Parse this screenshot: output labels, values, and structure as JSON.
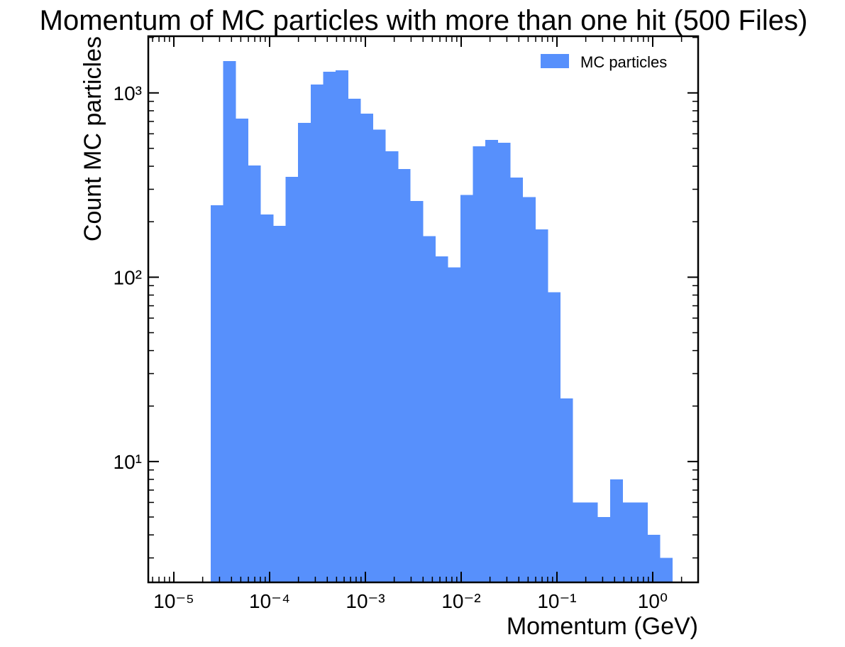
{
  "chart_data": {
    "type": "histogram",
    "title": "Momentum of MC particles with more than one hit (500 Files)",
    "xlabel": "Momentum (GeV)",
    "ylabel": "Count MC particles",
    "xscale": "log",
    "yscale": "log",
    "bins": [
      2.43e-05,
      3.27e-05,
      4.42e-05,
      5.97e-05,
      8.06e-05,
      0.0001089,
      0.000147,
      0.000198,
      0.000268,
      0.000361,
      0.000488,
      0.000659,
      0.000889,
      0.0012,
      0.00162,
      0.00219,
      0.00295,
      0.00399,
      0.00538,
      0.00727,
      0.00982,
      0.01324,
      0.01787,
      0.02415,
      0.0326,
      0.044,
      0.0594,
      0.0802,
      0.1082,
      0.1462,
      0.1972,
      0.2661,
      0.3597,
      0.4853,
      0.6546,
      0.885,
      1.194,
      1.61
    ],
    "series": [
      {
        "name": "MC particles",
        "color": "#5790fc",
        "values": [
          246,
          1490,
          726,
          404,
          219,
          190,
          351,
          689,
          1112,
          1305,
          1328,
          931,
          773,
          631,
          483,
          387,
          259,
          167,
          130,
          113,
          279,
          514,
          557,
          537,
          348,
          272,
          182,
          83,
          22,
          6,
          6,
          5,
          8,
          6,
          6,
          4,
          3
        ]
      }
    ],
    "xlim": [
      5.41e-06,
      2.98
    ],
    "ylim": [
      2.21,
      2030
    ],
    "xticks": [
      {
        "value": 1e-05,
        "label": "10⁻⁵"
      },
      {
        "value": 0.0001,
        "label": "10⁻⁴"
      },
      {
        "value": 0.001,
        "label": "10⁻³"
      },
      {
        "value": 0.01,
        "label": "10⁻²"
      },
      {
        "value": 0.1,
        "label": "10⁻¹"
      },
      {
        "value": 1,
        "label": "10⁰"
      }
    ],
    "yticks": [
      {
        "value": 10,
        "label": "10¹"
      },
      {
        "value": 100,
        "label": "10²"
      },
      {
        "value": 1000,
        "label": "10³"
      }
    ],
    "legend": "upper right"
  }
}
